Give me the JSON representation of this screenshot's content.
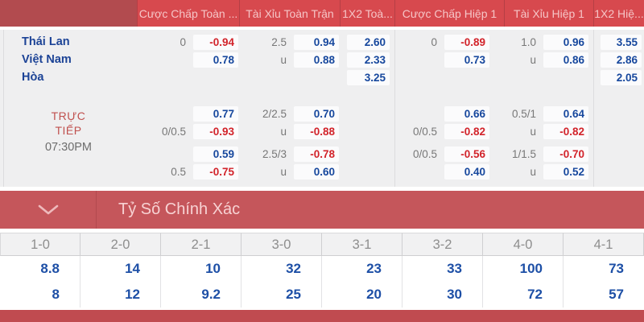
{
  "odds_table": {
    "header_columns": [
      "Cược Chấp Toàn ...",
      "Tài Xỉu Toàn Trận",
      "1X2 Toà...",
      "Cược Chấp Hiệp 1",
      "Tài Xỉu Hiệp 1",
      "1X2 Hiệ..."
    ],
    "prematch_rows": [
      {
        "label": "Thái Lan",
        "cells": [
          {
            "line": "0",
            "odds": "-0.94"
          },
          {
            "line": "2.5",
            "odds": "0.94"
          },
          {
            "line": "",
            "odds": "2.60"
          },
          {
            "line": "0",
            "odds": "-0.89"
          },
          {
            "line": "1.0",
            "odds": "0.96"
          },
          {
            "line": "",
            "odds": "3.55"
          }
        ]
      },
      {
        "label": "Việt Nam",
        "cells": [
          {
            "line": "",
            "odds": "0.78"
          },
          {
            "line": "u",
            "odds": "0.88"
          },
          {
            "line": "",
            "odds": "2.33"
          },
          {
            "line": "",
            "odds": "0.73"
          },
          {
            "line": "u",
            "odds": "0.86"
          },
          {
            "line": "",
            "odds": "2.86"
          }
        ]
      },
      {
        "label": "Hòa",
        "cells": [
          null,
          null,
          {
            "line": "",
            "odds": "3.25"
          },
          null,
          null,
          {
            "line": "",
            "odds": "2.05"
          }
        ]
      }
    ],
    "live_rows": [
      {
        "label": "",
        "cells": [
          {
            "line": "",
            "odds": "0.77"
          },
          {
            "line": "2/2.5",
            "odds": "0.70"
          },
          null,
          {
            "line": "",
            "odds": "0.66"
          },
          {
            "line": "0.5/1",
            "odds": "0.64"
          },
          null
        ]
      },
      {
        "label": "",
        "cells": [
          {
            "line": "0/0.5",
            "odds": "-0.93"
          },
          {
            "line": "u",
            "odds": "-0.88"
          },
          null,
          {
            "line": "0/0.5",
            "odds": "-0.82"
          },
          {
            "line": "u",
            "odds": "-0.82"
          },
          null
        ]
      },
      {
        "label": "",
        "cells": [
          {
            "line": "",
            "odds": "0.59"
          },
          {
            "line": "2.5/3",
            "odds": "-0.78"
          },
          null,
          {
            "line": "0/0.5",
            "odds": "-0.56"
          },
          {
            "line": "1/1.5",
            "odds": "-0.70"
          },
          null
        ]
      },
      {
        "label": "",
        "cells": [
          {
            "line": "0.5",
            "odds": "-0.75"
          },
          {
            "line": "u",
            "odds": "0.60"
          },
          null,
          {
            "line": "",
            "odds": "0.40"
          },
          {
            "line": "u",
            "odds": "0.52"
          },
          null
        ]
      }
    ],
    "live_status": {
      "line1": "TRỰC",
      "line2": "TIẾP",
      "time": "07:30PM"
    }
  },
  "correct_score": {
    "title": "Tỷ Số Chính Xác",
    "score_headers": [
      "1-0",
      "2-0",
      "2-1",
      "3-0",
      "3-1",
      "3-2",
      "4-0",
      "4-1"
    ],
    "odds_rows": [
      [
        "8.8",
        "14",
        "10",
        "32",
        "23",
        "33",
        "100",
        "73"
      ],
      [
        "8",
        "12",
        "9.2",
        "25",
        "20",
        "30",
        "72",
        "57"
      ]
    ]
  },
  "colors": {
    "header_red": "#d7494e",
    "header_dark_red": "#b24b4f",
    "section_red": "#c5565b",
    "bottom_red": "#c04b50",
    "live_red": "#c0514f",
    "team_blue": "#1c4396",
    "odds_blue": "#16479d",
    "odds_red": "#d2232a",
    "score_blue": "#1d4fa6"
  }
}
